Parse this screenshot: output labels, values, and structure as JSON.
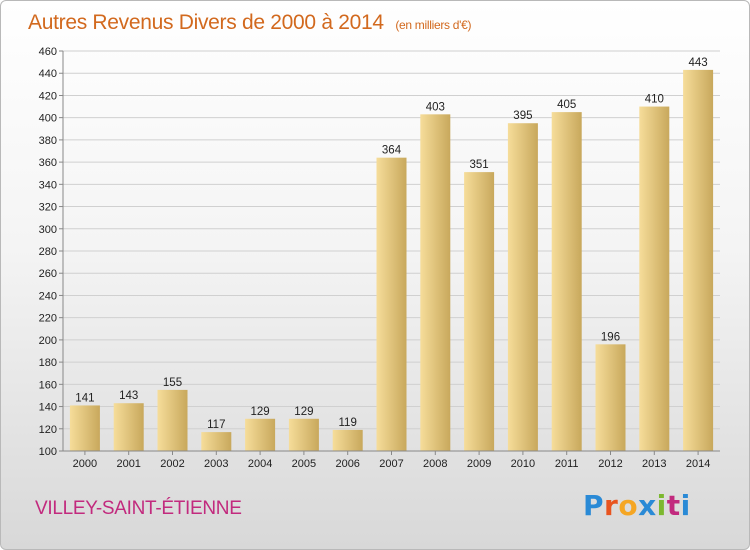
{
  "title": "Autres Revenus Divers de 2000 à 2014",
  "title_unit": "(en milliers d'€)",
  "commune": "VILLEY-SAINT-ÉTIENNE",
  "logo": {
    "letters": [
      "P",
      "r",
      "o",
      "x",
      "i",
      "t",
      "i"
    ],
    "colors": [
      "#2a8ad6",
      "#e8541f",
      "#f5a623",
      "#2a8ad6",
      "#7cb82f",
      "#c22a7e",
      "#2a8ad6"
    ]
  },
  "colors": {
    "title": "#d2691e",
    "commune": "#c22a7e",
    "bar_light": "#f6dd9a",
    "bar_dark": "#c8a85c",
    "grid": "#d0d0d0"
  },
  "chart_data": {
    "type": "bar",
    "categories": [
      "2000",
      "2001",
      "2002",
      "2003",
      "2004",
      "2005",
      "2006",
      "2007",
      "2008",
      "2009",
      "2010",
      "2011",
      "2012",
      "2013",
      "2014"
    ],
    "values": [
      141,
      143,
      155,
      117,
      129,
      129,
      119,
      364,
      403,
      351,
      395,
      405,
      196,
      410,
      443
    ],
    "ylim": [
      100,
      460
    ],
    "yticks": [
      100,
      120,
      140,
      160,
      180,
      200,
      220,
      240,
      260,
      280,
      300,
      320,
      340,
      360,
      380,
      400,
      420,
      440,
      460
    ],
    "grid": true
  }
}
